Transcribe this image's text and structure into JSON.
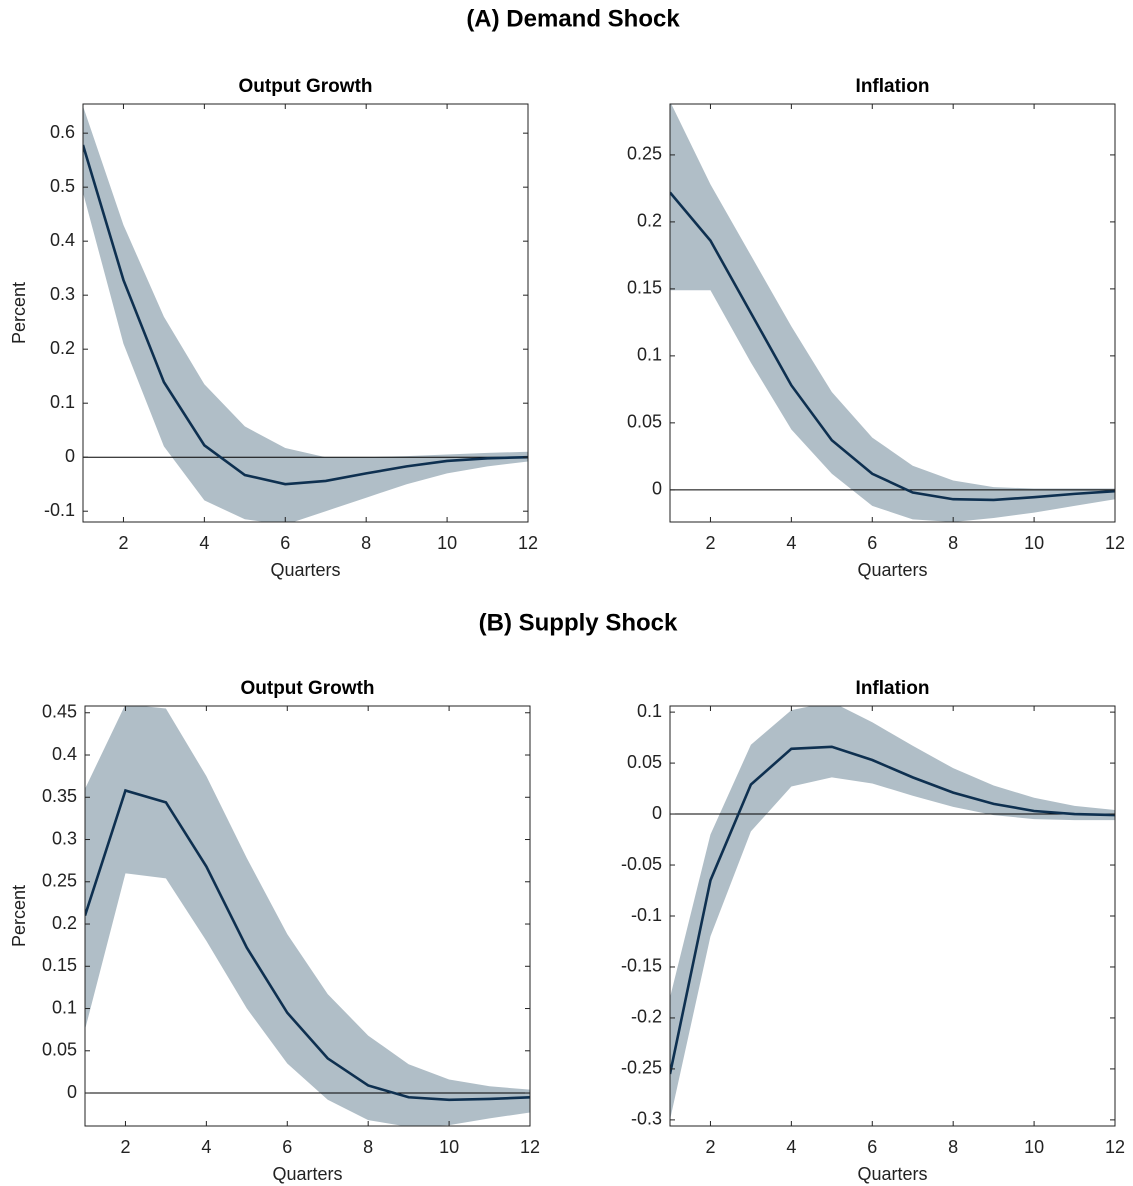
{
  "headings": [
    "(A) Demand Shock",
    "(B) Supply Shock"
  ],
  "chart_data": [
    {
      "type": "line",
      "title": "Output Growth",
      "x_label": "Quarters",
      "y_label": "Percent",
      "x": [
        1,
        2,
        3,
        4,
        5,
        6,
        7,
        8,
        9,
        10,
        11,
        12
      ],
      "values": [
        0.578,
        0.328,
        0.139,
        0.022,
        -0.033,
        -0.05,
        -0.044,
        -0.03,
        -0.017,
        -0.007,
        -0.002,
        0
      ],
      "upper": [
        0.65,
        0.43,
        0.26,
        0.135,
        0.057,
        0.017,
        0,
        0,
        0.002,
        0.005,
        0.008,
        0.01
      ],
      "lower": [
        0.49,
        0.21,
        0.02,
        -0.08,
        -0.115,
        -0.125,
        -0.1,
        -0.075,
        -0.05,
        -0.03,
        -0.017,
        -0.008
      ],
      "color": "#0e3050",
      "band_color": "#b0bec7",
      "reference_line": 0,
      "xlim": [
        1,
        12
      ],
      "xticks": [
        2,
        4,
        6,
        8,
        10,
        12
      ],
      "ylim": [
        -0.12,
        0.654
      ],
      "yticks": [
        -0.1,
        0,
        0.1,
        0.2,
        0.3,
        0.4,
        0.5,
        0.6
      ]
    },
    {
      "type": "line",
      "title": "Inflation",
      "x_label": "Quarters",
      "x": [
        1,
        2,
        3,
        4,
        5,
        6,
        7,
        8,
        9,
        10,
        11,
        12
      ],
      "values": [
        0.222,
        0.186,
        0.132,
        0.078,
        0.037,
        0.012,
        -0.002,
        -0.007,
        -0.0075,
        -0.0055,
        -0.003,
        -0.001
      ],
      "upper": [
        0.29,
        0.228,
        0.175,
        0.122,
        0.073,
        0.039,
        0.018,
        0.007,
        0.002,
        0.001,
        0.001,
        0.001
      ],
      "lower": [
        0.149,
        0.149,
        0.095,
        0.045,
        0.012,
        -0.012,
        -0.022,
        -0.024,
        -0.021,
        -0.017,
        -0.012,
        -0.007
      ],
      "color": "#0e3050",
      "band_color": "#b0bec7",
      "reference_line": 0,
      "xlim": [
        1,
        12
      ],
      "xticks": [
        2,
        4,
        6,
        8,
        10,
        12
      ],
      "ylim": [
        -0.024,
        0.288
      ],
      "yticks": [
        0,
        0.05,
        0.1,
        0.15,
        0.2,
        0.25
      ]
    },
    {
      "type": "line",
      "title": "Output Growth",
      "x_label": "Quarters",
      "y_label": "Percent",
      "x": [
        1,
        2,
        3,
        4,
        5,
        6,
        7,
        8,
        9,
        10,
        11,
        12
      ],
      "values": [
        0.21,
        0.358,
        0.344,
        0.268,
        0.172,
        0.095,
        0.041,
        0.009,
        -0.005,
        -0.008,
        -0.007,
        -0.005
      ],
      "upper": [
        0.36,
        0.46,
        0.455,
        0.375,
        0.278,
        0.188,
        0.117,
        0.068,
        0.034,
        0.016,
        0.008,
        0.004
      ],
      "lower": [
        0.075,
        0.26,
        0.254,
        0.18,
        0.1,
        0.035,
        -0.008,
        -0.032,
        -0.04,
        -0.038,
        -0.03,
        -0.023
      ],
      "color": "#0e3050",
      "band_color": "#b0bec7",
      "reference_line": 0,
      "xlim": [
        1,
        12
      ],
      "xticks": [
        2,
        4,
        6,
        8,
        10,
        12
      ],
      "ylim": [
        -0.039,
        0.458
      ],
      "yticks": [
        0,
        0.05,
        0.1,
        0.15,
        0.2,
        0.25,
        0.3,
        0.35,
        0.4,
        0.45
      ]
    },
    {
      "type": "line",
      "title": "Inflation",
      "x_label": "Quarters",
      "x": [
        1,
        2,
        3,
        4,
        5,
        6,
        7,
        8,
        9,
        10,
        11,
        12
      ],
      "values": [
        -0.255,
        -0.065,
        0.029,
        0.064,
        0.066,
        0.053,
        0.036,
        0.021,
        0.01,
        0.003,
        0,
        -0.001
      ],
      "upper": [
        -0.18,
        -0.02,
        0.068,
        0.102,
        0.11,
        0.09,
        0.067,
        0.045,
        0.028,
        0.016,
        0.008,
        0.004
      ],
      "lower": [
        -0.3,
        -0.12,
        -0.017,
        0.027,
        0.036,
        0.03,
        0.018,
        0.007,
        -0.001,
        -0.005,
        -0.006,
        -0.006
      ],
      "color": "#0e3050",
      "band_color": "#b0bec7",
      "reference_line": 0,
      "xlim": [
        1,
        12
      ],
      "xticks": [
        2,
        4,
        6,
        8,
        10,
        12
      ],
      "ylim": [
        -0.306,
        0.106
      ],
      "yticks": [
        -0.3,
        -0.25,
        -0.2,
        -0.15,
        -0.1,
        -0.05,
        0,
        0.05,
        0.1
      ]
    }
  ]
}
